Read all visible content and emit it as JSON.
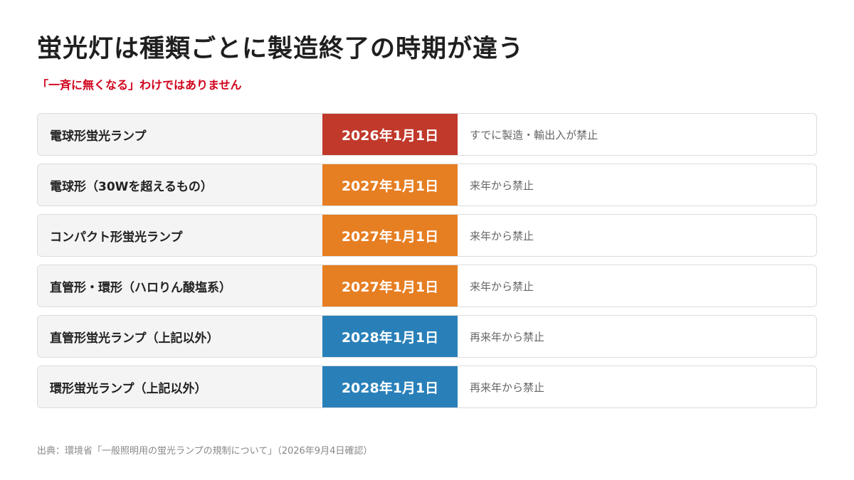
{
  "header": {
    "title": "蛍光灯は種類ごとに製造終了の時期が違う",
    "subtitle": "「一斉に無くなる」わけではありません"
  },
  "chart_data": {
    "type": "table",
    "rows": [
      {
        "lamp": "電球形蛍光ランプ",
        "date": "2026年1月1日",
        "note": "すでに製造・輸出入が禁止",
        "color": "#c0392b"
      },
      {
        "lamp": "電球形（30Wを超えるもの）",
        "date": "2027年1月1日",
        "note": "来年から禁止",
        "color": "#e67e22"
      },
      {
        "lamp": "コンパクト形蛍光ランプ",
        "date": "2027年1月1日",
        "note": "来年から禁止",
        "color": "#e67e22"
      },
      {
        "lamp": "直管形・環形（ハロりん酸塩系）",
        "date": "2027年1月1日",
        "note": "来年から禁止",
        "color": "#e67e22"
      },
      {
        "lamp": "直管形蛍光ランプ（上記以外）",
        "date": "2028年1月1日",
        "note": "再来年から禁止",
        "color": "#2980b9"
      },
      {
        "lamp": "環形蛍光ランプ（上記以外）",
        "date": "2028年1月1日",
        "note": "再来年から禁止",
        "color": "#2980b9"
      }
    ]
  },
  "footer": {
    "source": "出典：環境省「一般照明用の蛍光ランプの規制について」（2026年9月4日確認）"
  }
}
